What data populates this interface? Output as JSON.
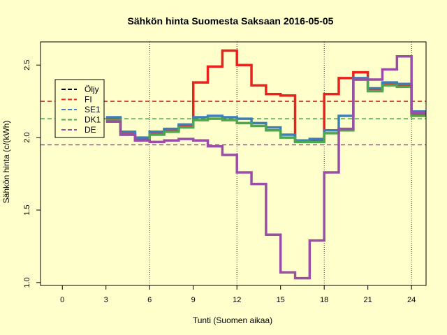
{
  "chart_data": {
    "type": "line",
    "title": "Sähkön hinta Suomesta Saksaan 2016-05-05",
    "xlabel": "Tunti (Suomen aikaa)",
    "ylabel": "Sähkön hinta (c/(kWh)",
    "xlim": [
      -1.5,
      25
    ],
    "ylim": [
      0.98,
      2.66
    ],
    "x_ticks": [
      0,
      3,
      6,
      9,
      12,
      15,
      18,
      21,
      24
    ],
    "y_ticks": [
      1.0,
      1.5,
      2.0,
      2.5
    ],
    "y_tick_labels": [
      "1.0",
      "1.5",
      "2.0",
      "2.5"
    ],
    "vlines": [
      6,
      12,
      18,
      24
    ],
    "legend_position": "top-left",
    "hours": [
      3,
      4,
      5,
      6,
      7,
      8,
      9,
      10,
      11,
      12,
      13,
      14,
      15,
      16,
      17,
      18,
      19,
      20,
      21,
      22,
      23,
      24
    ],
    "series": [
      {
        "name": "FI",
        "color": "#e8221c",
        "values": [
          2.13,
          2.03,
          1.99,
          2.03,
          2.05,
          2.08,
          2.38,
          2.49,
          2.6,
          2.5,
          2.36,
          2.3,
          2.29,
          1.98,
          1.98,
          2.3,
          2.41,
          2.45,
          2.33,
          2.37,
          2.36,
          2.16
        ]
      },
      {
        "name": "SE1",
        "color": "#3a7ebc",
        "values": [
          2.14,
          2.04,
          2.0,
          2.04,
          2.06,
          2.09,
          2.14,
          2.15,
          2.14,
          2.13,
          2.1,
          2.07,
          2.02,
          1.98,
          1.99,
          2.05,
          2.15,
          2.41,
          2.34,
          2.38,
          2.37,
          2.18
        ]
      },
      {
        "name": "DK1",
        "color": "#4ca84c",
        "values": [
          2.12,
          2.02,
          1.98,
          2.02,
          2.04,
          2.07,
          2.12,
          2.13,
          2.12,
          2.1,
          2.08,
          2.05,
          2.0,
          1.97,
          1.97,
          2.03,
          2.05,
          2.4,
          2.32,
          2.36,
          2.35,
          2.15
        ]
      },
      {
        "name": "DE",
        "color": "#9a4ea8",
        "values": [
          2.11,
          2.02,
          1.98,
          1.97,
          1.98,
          1.99,
          1.98,
          1.94,
          1.88,
          1.76,
          1.68,
          1.33,
          1.07,
          1.03,
          1.29,
          1.76,
          2.06,
          2.4,
          2.4,
          2.47,
          2.56,
          2.17
        ]
      }
    ],
    "reference_lines": [
      {
        "name": "Öljy",
        "color": "#000000",
        "value": null
      },
      {
        "name": "FI",
        "color": "#e8221c",
        "value": 2.25
      },
      {
        "name": "DK1",
        "color": "#4ca84c",
        "value": 2.13
      },
      {
        "name": "DE",
        "color": "#9a4ea8",
        "value": 1.95
      }
    ],
    "legend": [
      {
        "name": "Öljy",
        "color": "#000000"
      },
      {
        "name": "FI",
        "color": "#e8221c"
      },
      {
        "name": "SE1",
        "color": "#3a7ebc"
      },
      {
        "name": "DK1",
        "color": "#4ca84c"
      },
      {
        "name": "DE",
        "color": "#9a4ea8"
      }
    ]
  }
}
